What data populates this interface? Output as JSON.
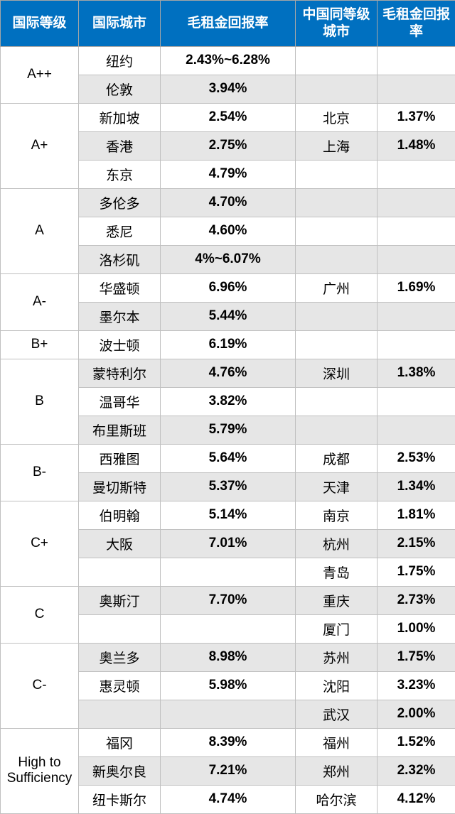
{
  "columns": {
    "c1": "国际等级",
    "c2": "国际城市",
    "c3": "毛租金回报率",
    "c4": "中国同等级城市",
    "c5": "毛租金回报率"
  },
  "widths": {
    "c1": 110,
    "c2": 115,
    "c3": 190,
    "c4": 115,
    "c5": 110
  },
  "header_bg": "#0070c0",
  "header_fg": "#ffffff",
  "alt_bg": "#e6e6e6",
  "grades": [
    {
      "label": "A++",
      "rows": [
        {
          "city": "纽约",
          "rate": "2.43%~6.28%",
          "cn": "",
          "cnrate": ""
        },
        {
          "city": "伦敦",
          "rate": "3.94%",
          "cn": "",
          "cnrate": ""
        }
      ]
    },
    {
      "label": "A+",
      "rows": [
        {
          "city": "新加坡",
          "rate": "2.54%",
          "cn": "北京",
          "cnrate": "1.37%"
        },
        {
          "city": "香港",
          "rate": "2.75%",
          "cn": "上海",
          "cnrate": "1.48%"
        },
        {
          "city": "东京",
          "rate": "4.79%",
          "cn": "",
          "cnrate": ""
        }
      ]
    },
    {
      "label": "A",
      "rows": [
        {
          "city": "多伦多",
          "rate": "4.70%",
          "cn": "",
          "cnrate": ""
        },
        {
          "city": "悉尼",
          "rate": "4.60%",
          "cn": "",
          "cnrate": ""
        },
        {
          "city": "洛杉矶",
          "rate": "4%~6.07%",
          "cn": "",
          "cnrate": ""
        }
      ]
    },
    {
      "label": "A-",
      "rows": [
        {
          "city": "华盛顿",
          "rate": "6.96%",
          "cn": "广州",
          "cnrate": "1.69%"
        },
        {
          "city": "墨尔本",
          "rate": "5.44%",
          "cn": "",
          "cnrate": ""
        }
      ]
    },
    {
      "label": "B+",
      "rows": [
        {
          "city": "波士顿",
          "rate": "6.19%",
          "cn": "",
          "cnrate": ""
        }
      ]
    },
    {
      "label": "B",
      "rows": [
        {
          "city": "蒙特利尔",
          "rate": "4.76%",
          "cn": "深圳",
          "cnrate": "1.38%"
        },
        {
          "city": "温哥华",
          "rate": "3.82%",
          "cn": "",
          "cnrate": ""
        },
        {
          "city": "布里斯班",
          "rate": "5.79%",
          "cn": "",
          "cnrate": ""
        }
      ]
    },
    {
      "label": "B-",
      "rows": [
        {
          "city": "西雅图",
          "rate": "5.64%",
          "cn": "成都",
          "cnrate": "2.53%"
        },
        {
          "city": "曼切斯特",
          "rate": "5.37%",
          "cn": "天津",
          "cnrate": "1.34%"
        }
      ]
    },
    {
      "label": "C+",
      "rows": [
        {
          "city": "伯明翰",
          "rate": "5.14%",
          "cn": "南京",
          "cnrate": "1.81%"
        },
        {
          "city": "大阪",
          "rate": "7.01%",
          "cn": "杭州",
          "cnrate": "2.15%"
        },
        {
          "city": "",
          "rate": "",
          "cn": "青岛",
          "cnrate": "1.75%"
        }
      ]
    },
    {
      "label": "C",
      "rows": [
        {
          "city": "奥斯汀",
          "rate": "7.70%",
          "cn": "重庆",
          "cnrate": "2.73%"
        },
        {
          "city": "",
          "rate": "",
          "cn": "厦门",
          "cnrate": "1.00%"
        }
      ]
    },
    {
      "label": "C-",
      "rows": [
        {
          "city": "奥兰多",
          "rate": "8.98%",
          "cn": "苏州",
          "cnrate": "1.75%"
        },
        {
          "city": "惠灵顿",
          "rate": "5.98%",
          "cn": "沈阳",
          "cnrate": "3.23%"
        },
        {
          "city": "",
          "rate": "",
          "cn": "武汉",
          "cnrate": "2.00%"
        }
      ]
    },
    {
      "label": "High to Sufficiency",
      "rows": [
        {
          "city": "福冈",
          "rate": "8.39%",
          "cn": "福州",
          "cnrate": "1.52%"
        },
        {
          "city": "新奥尔良",
          "rate": "7.21%",
          "cn": "郑州",
          "cnrate": "2.32%"
        },
        {
          "city": "纽卡斯尔",
          "rate": "4.74%",
          "cn": "哈尔滨",
          "cnrate": "4.12%"
        }
      ]
    }
  ]
}
